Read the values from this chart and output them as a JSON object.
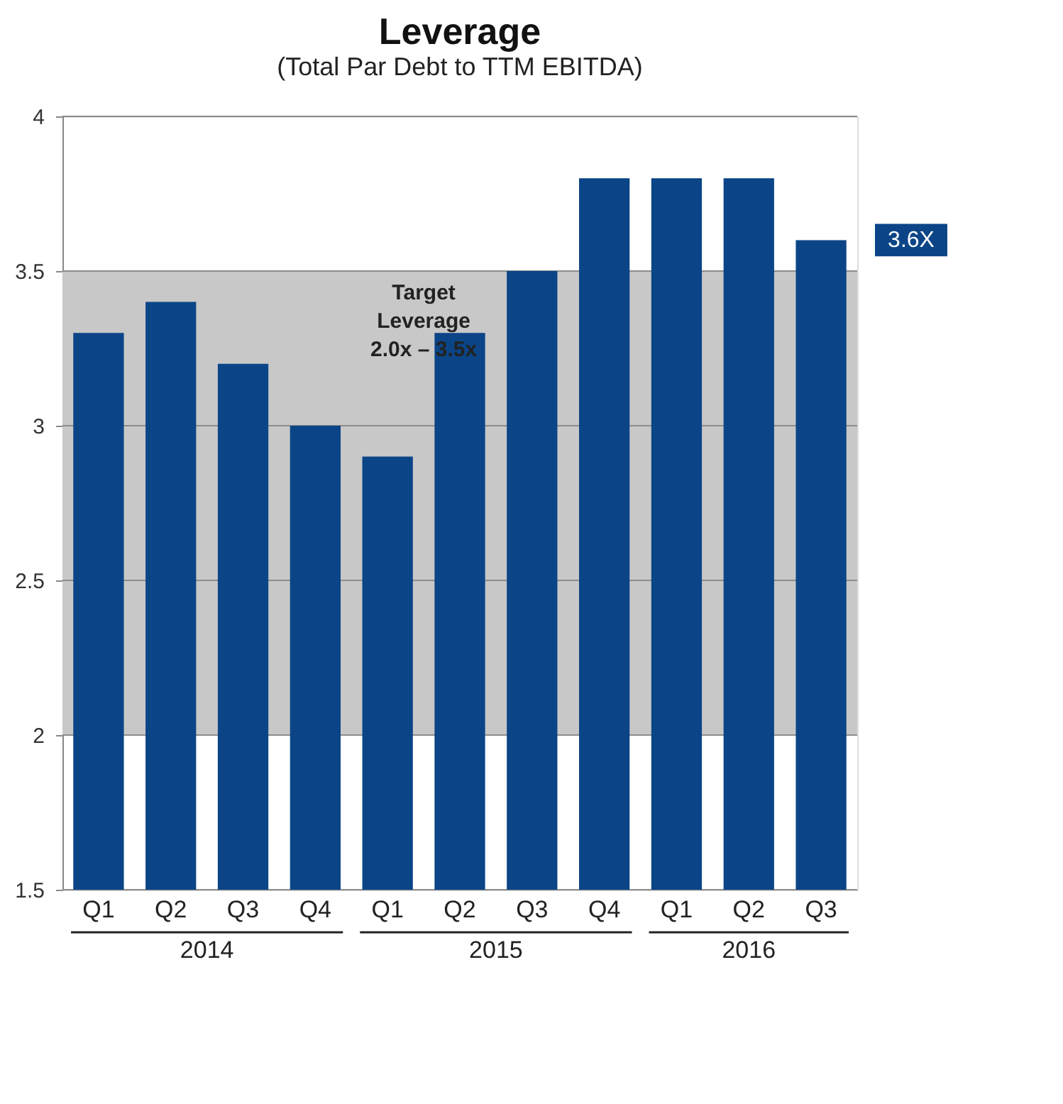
{
  "chart_data": {
    "type": "bar",
    "title": "Leverage",
    "subtitle": "(Total Par Debt to TTM EBITDA)",
    "categories": [
      "Q1",
      "Q2",
      "Q3",
      "Q4",
      "Q1",
      "Q2",
      "Q3",
      "Q4",
      "Q1",
      "Q2",
      "Q3"
    ],
    "series": [
      {
        "color": "#0b4587",
        "values": [
          3.3,
          3.4,
          3.2,
          3.0,
          2.9,
          3.3,
          3.5,
          3.8,
          3.8,
          3.8,
          3.6
        ]
      }
    ],
    "ylim": [
      1.5,
      4
    ],
    "yticks": [
      1.5,
      2,
      2.5,
      3,
      3.5,
      4
    ],
    "grid": "y",
    "bands": [
      {
        "axis": "y",
        "from": 2.0,
        "to": 3.5,
        "label": "Target\nLeverage\n2.0x – 3.5x",
        "color": "#c8c8c8"
      }
    ],
    "annotations": [
      "2014",
      "2015",
      "2016",
      "3.6X"
    ]
  }
}
